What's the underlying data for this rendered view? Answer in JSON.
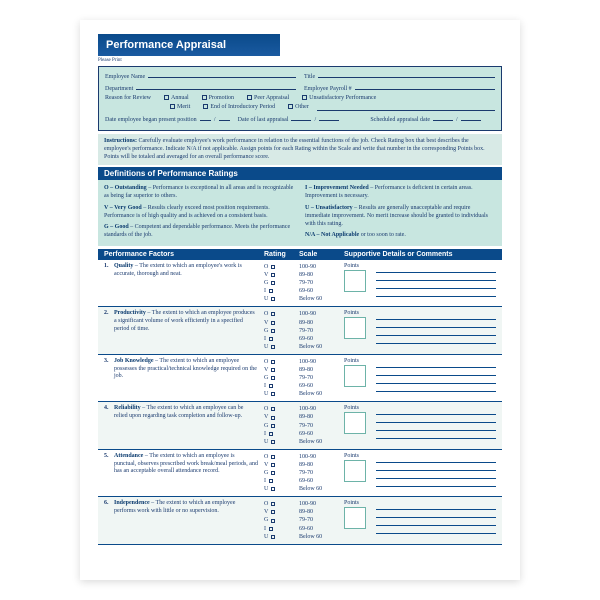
{
  "title": "Performance Appraisal",
  "pleasePrint": "Please Print",
  "info": {
    "employeeName": "Employee Name",
    "title": "Title",
    "department": "Department",
    "payroll": "Employee Payroll #",
    "reason": "Reason for Review",
    "reasons": [
      "Annual",
      "Promotion",
      "Peer Appraisal",
      "Unsatisfactory Performance",
      "Merit",
      "End of Introductory Period",
      "Other"
    ],
    "dateBegan": "Date employee began present position",
    "dateLast": "Date of last appraisal",
    "dateSched": "Scheduled appraisal date"
  },
  "instructions": {
    "label": "Instructions:",
    "text": "Carefully evaluate employee's work performance in relation to the essential functions of the job. Check Rating box that best describes the employee's performance. Indicate N/A if not applicable. Assign points for each Rating within the Scale and write that number in the corresponding Points box. Points will be totaled and averaged for an overall performance score."
  },
  "defTitle": "Definitions of Performance Ratings",
  "defs": [
    {
      "k": "O – Outstanding",
      "t": " – Performance is exceptional in all areas and is recognizable as being far superior to others."
    },
    {
      "k": "V – Very Good",
      "t": " – Results clearly exceed most position requirements. Performance is of high quality and is achieved on a consistent basis."
    },
    {
      "k": "G – Good",
      "t": " – Competent and dependable performance. Meets the performance standards of the job."
    },
    {
      "k": "I – Improvement Needed",
      "t": " – Performance is deficient in certain areas. Improvement is necessary."
    },
    {
      "k": "U – Unsatisfactory",
      "t": " – Results are generally unacceptable and require immediate improvement. No merit increase should be granted to individuals with this rating."
    },
    {
      "k": "N/A – Not Applicable",
      "t": " or too soon to rate."
    }
  ],
  "headers": {
    "factors": "Performance Factors",
    "rating": "Rating",
    "scale": "Scale",
    "support": "Supportive Details or Comments"
  },
  "ratings": [
    "O",
    "V",
    "G",
    "I",
    "U"
  ],
  "scales": [
    "100-90",
    "89-80",
    "79-70",
    "69-60",
    "Below 60"
  ],
  "pointsLabel": "Points",
  "factors": [
    {
      "n": "1.",
      "name": "Quality",
      "desc": " – The extent to which an employee's work is accurate, thorough and neat."
    },
    {
      "n": "2.",
      "name": "Productivity",
      "desc": " – The extent to which an employee produces a significant volume of work efficiently in a specified period of time."
    },
    {
      "n": "3.",
      "name": "Job Knowledge",
      "desc": " – The extent to which an employee possesses the practical/technical knowledge required on the job."
    },
    {
      "n": "4.",
      "name": "Reliability",
      "desc": " – The extent to which an employee can be relied upon regarding task completion and follow-up."
    },
    {
      "n": "5.",
      "name": "Attendance",
      "desc": " – The extent to which an employee is punctual, observes prescribed work break/meal periods, and has an acceptable overall attendance record."
    },
    {
      "n": "6.",
      "name": "Independence",
      "desc": " – The extent to which an employee performs work with little or no supervision."
    }
  ],
  "colors": {
    "primary": "#0a4a8a",
    "accent": "#c8e6e0",
    "text": "#1a3a6e"
  }
}
